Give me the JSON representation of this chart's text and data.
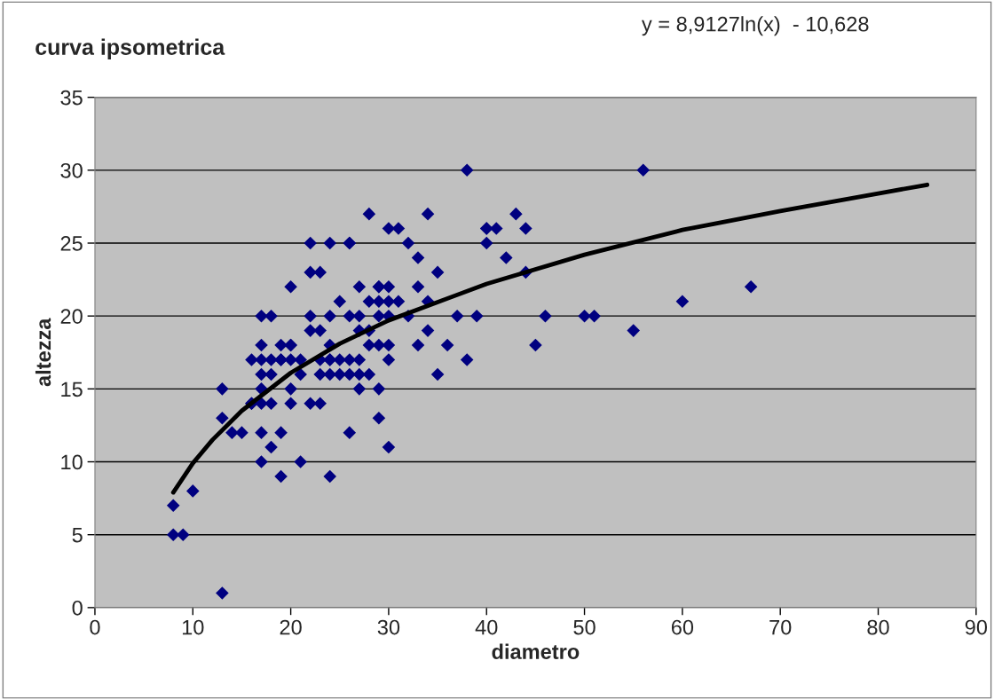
{
  "chart_data": {
    "type": "scatter",
    "title": "curva ipsometrica",
    "xlabel": "diametro",
    "ylabel": "altezza",
    "annotations": [
      "y = 8,9127ln(x)  - 10,628"
    ],
    "xlim": [
      0,
      90
    ],
    "xticks": [
      0,
      10,
      20,
      30,
      40,
      50,
      60,
      70,
      80,
      90
    ],
    "ylim": [
      0,
      35
    ],
    "yticks": [
      0,
      5,
      10,
      15,
      20,
      25,
      30,
      35
    ],
    "grid": "y",
    "marker": "diamond",
    "legend": false,
    "series": [
      {
        "color": "#000080",
        "x": [
          8,
          8,
          9,
          10,
          13,
          13,
          13,
          14,
          15,
          16,
          16,
          16,
          17,
          17,
          17,
          17,
          17,
          17,
          17,
          17,
          18,
          18,
          18,
          18,
          18,
          19,
          19,
          19,
          19,
          19,
          20,
          20,
          20,
          20,
          20,
          20,
          21,
          21,
          21,
          22,
          22,
          22,
          22,
          22,
          23,
          23,
          23,
          23,
          23,
          24,
          24,
          24,
          24,
          24,
          24,
          24,
          25,
          25,
          25,
          26,
          26,
          26,
          26,
          26,
          26,
          27,
          27,
          27,
          27,
          27,
          27,
          28,
          28,
          28,
          28,
          28,
          29,
          29,
          29,
          29,
          29,
          29,
          29,
          30,
          30,
          30,
          30,
          30,
          30,
          30,
          31,
          31,
          32,
          32,
          33,
          33,
          33,
          34,
          34,
          34,
          35,
          35,
          36,
          37,
          38,
          38,
          39,
          40,
          40,
          40,
          41,
          42,
          43,
          44,
          44,
          45,
          46,
          50,
          51,
          55,
          56,
          60,
          67
        ],
        "values": [
          7,
          5,
          5,
          8,
          15,
          13,
          1,
          12,
          12,
          17,
          14,
          14,
          20,
          18,
          17,
          16,
          15,
          14,
          12,
          10,
          20,
          17,
          16,
          14,
          11,
          18,
          17,
          12,
          9,
          17,
          22,
          18,
          17,
          15,
          14,
          18,
          17,
          16,
          10,
          25,
          23,
          20,
          19,
          14,
          23,
          19,
          17,
          16,
          14,
          25,
          20,
          18,
          17,
          16,
          9,
          17,
          21,
          17,
          16,
          25,
          20,
          17,
          16,
          12,
          25,
          22,
          20,
          19,
          17,
          16,
          15,
          27,
          21,
          19,
          18,
          16,
          22,
          21,
          20,
          18,
          15,
          13,
          22,
          26,
          21,
          20,
          18,
          17,
          11,
          22,
          26,
          21,
          25,
          20,
          24,
          22,
          18,
          27,
          21,
          19,
          23,
          16,
          18,
          20,
          30,
          17,
          20,
          26,
          25,
          26,
          26,
          24,
          27,
          26,
          23,
          18,
          20,
          20,
          20,
          19,
          30,
          21,
          22
        ]
      },
      {
        "type": "line",
        "color": "#000000",
        "marker": "none",
        "x": [
          8,
          10,
          12,
          15,
          20,
          25,
          30,
          40,
          50,
          60,
          70,
          80,
          85
        ],
        "values": [
          7.9,
          9.9,
          11.5,
          13.5,
          16.1,
          18.1,
          19.7,
          22.2,
          24.2,
          25.9,
          27.2,
          28.4,
          29.0
        ]
      }
    ]
  }
}
